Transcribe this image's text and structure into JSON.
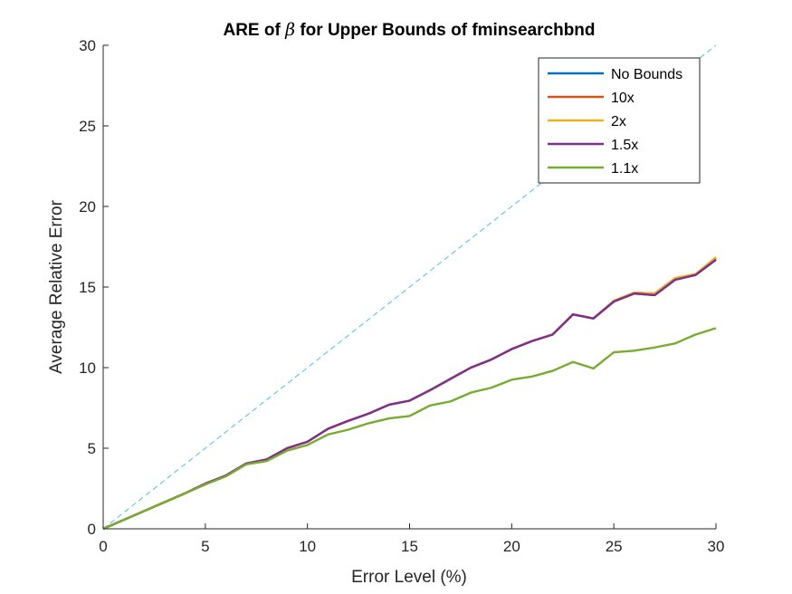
{
  "chart_data": {
    "type": "line",
    "title_prefix": "ARE of ",
    "title_symbol": "β",
    "title_suffix": " for Upper Bounds of fminsearchbnd",
    "xlabel": "Error Level (%)",
    "ylabel": "Average Relative Error",
    "xlim": [
      0,
      30
    ],
    "ylim": [
      0,
      30
    ],
    "xticks": [
      0,
      5,
      10,
      15,
      20,
      25,
      30
    ],
    "yticks": [
      0,
      5,
      10,
      15,
      20,
      25,
      30
    ],
    "grid": false,
    "legend_position": "top-right",
    "x": [
      0,
      1,
      2,
      3,
      4,
      5,
      6,
      7,
      8,
      9,
      10,
      11,
      12,
      13,
      14,
      15,
      16,
      17,
      18,
      19,
      20,
      21,
      22,
      23,
      24,
      25,
      26,
      27,
      28,
      29,
      30
    ],
    "reference_line": {
      "x": [
        0,
        30
      ],
      "y": [
        0,
        30
      ],
      "color": "#4DBEEE",
      "style": "dashed"
    },
    "series": [
      {
        "name": "No Bounds",
        "color": "#0072BD",
        "values": [
          0,
          0.55,
          1.1,
          1.65,
          2.2,
          2.8,
          3.3,
          4.05,
          4.3,
          5.0,
          5.4,
          6.2,
          6.7,
          7.15,
          7.7,
          7.95,
          8.6,
          9.3,
          10.0,
          10.5,
          11.15,
          11.65,
          12.05,
          13.3,
          13.05,
          14.1,
          14.6,
          14.5,
          15.45,
          15.75,
          16.7
        ]
      },
      {
        "name": "10x",
        "color": "#D95319",
        "values": [
          0,
          0.55,
          1.1,
          1.65,
          2.2,
          2.8,
          3.3,
          4.05,
          4.3,
          5.0,
          5.4,
          6.2,
          6.7,
          7.15,
          7.7,
          7.95,
          8.6,
          9.3,
          10.0,
          10.5,
          11.15,
          11.65,
          12.05,
          13.3,
          13.05,
          14.15,
          14.65,
          14.6,
          15.55,
          15.8,
          16.8
        ]
      },
      {
        "name": "2x",
        "color": "#EDB120",
        "values": [
          0,
          0.55,
          1.1,
          1.65,
          2.2,
          2.8,
          3.3,
          4.05,
          4.3,
          5.0,
          5.4,
          6.2,
          6.7,
          7.15,
          7.7,
          7.95,
          8.6,
          9.3,
          10.0,
          10.5,
          11.15,
          11.65,
          12.05,
          13.3,
          13.05,
          14.15,
          14.65,
          14.6,
          15.55,
          15.8,
          16.85
        ]
      },
      {
        "name": "1.5x",
        "color": "#7E2F8E",
        "values": [
          0,
          0.55,
          1.1,
          1.65,
          2.2,
          2.8,
          3.3,
          4.05,
          4.3,
          5.0,
          5.4,
          6.2,
          6.7,
          7.15,
          7.7,
          7.95,
          8.6,
          9.3,
          10.0,
          10.5,
          11.15,
          11.65,
          12.05,
          13.3,
          13.05,
          14.1,
          14.6,
          14.5,
          15.45,
          15.75,
          16.7
        ]
      },
      {
        "name": "1.1x",
        "color": "#77AC30",
        "values": [
          0,
          0.55,
          1.1,
          1.65,
          2.2,
          2.75,
          3.25,
          4.0,
          4.2,
          4.85,
          5.2,
          5.85,
          6.15,
          6.55,
          6.85,
          7.0,
          7.65,
          7.9,
          8.45,
          8.75,
          9.25,
          9.45,
          9.8,
          10.35,
          9.95,
          10.95,
          11.05,
          11.25,
          11.5,
          12.05,
          12.45
        ]
      }
    ]
  }
}
